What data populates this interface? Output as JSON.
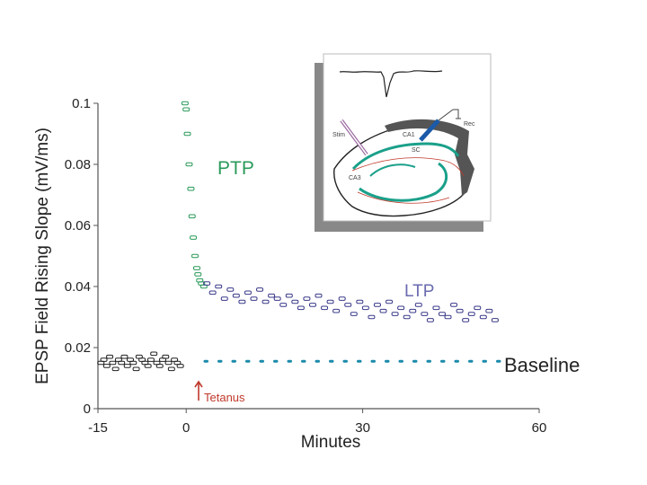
{
  "chart_data": {
    "type": "scatter",
    "xlabel": "Minutes",
    "ylabel": "EPSP Field Rising Slope (mV/ms)",
    "xlim": [
      -15,
      60
    ],
    "ylim": [
      0,
      0.1
    ],
    "x_ticks": [
      "-15",
      "0",
      "30",
      "60"
    ],
    "y_ticks": [
      "0",
      "0.02",
      "0.04",
      "0.06",
      "0.08",
      "0.1"
    ],
    "grid": false,
    "series": [
      {
        "name": "Baseline",
        "color": "#222222",
        "x": [
          -14.5,
          -14,
          -13.5,
          -13,
          -12.5,
          -12,
          -11.5,
          -11,
          -10.5,
          -10,
          -9.5,
          -9,
          -8.5,
          -8,
          -7.5,
          -7,
          -6.5,
          -6,
          -5.5,
          -5,
          -4.5,
          -4,
          -3.5,
          -3,
          -2.5,
          -2,
          -1.5,
          -1
        ],
        "y": [
          0.015,
          0.016,
          0.014,
          0.017,
          0.015,
          0.013,
          0.016,
          0.015,
          0.017,
          0.014,
          0.016,
          0.015,
          0.013,
          0.017,
          0.016,
          0.015,
          0.014,
          0.016,
          0.018,
          0.015,
          0.014,
          0.016,
          0.017,
          0.015,
          0.013,
          0.016,
          0.015,
          0.014
        ]
      },
      {
        "name": "PTP",
        "color": "#2a9a5a",
        "x": [
          -0.2,
          0,
          0.2,
          0.5,
          0.8,
          1,
          1.2,
          1.5,
          1.8,
          2,
          2.3,
          2.6,
          3
        ],
        "y": [
          0.1,
          0.098,
          0.09,
          0.08,
          0.072,
          0.063,
          0.056,
          0.05,
          0.046,
          0.044,
          0.042,
          0.041,
          0.04
        ]
      },
      {
        "name": "LTP",
        "color": "#3a3a8a",
        "x": [
          3.5,
          4.5,
          5.5,
          6.5,
          7.5,
          8.5,
          9.5,
          10.5,
          11.5,
          12.5,
          13.5,
          14.5,
          15.5,
          16.5,
          17.5,
          18.5,
          19.5,
          20.5,
          21.5,
          22.5,
          23.5,
          24.5,
          25.5,
          26.5,
          27.5,
          28.5,
          29.5,
          30.5,
          31.5,
          32.5,
          33.5,
          34.5,
          35.5,
          36.5,
          37.5,
          38.5,
          39.5,
          40.5,
          41.5,
          42.5,
          43.5,
          44.5,
          45.5,
          46.5,
          47.5,
          48.5,
          49.5,
          50.5,
          51.5,
          52.5
        ],
        "y": [
          0.041,
          0.038,
          0.04,
          0.036,
          0.039,
          0.037,
          0.035,
          0.038,
          0.036,
          0.039,
          0.035,
          0.037,
          0.036,
          0.034,
          0.037,
          0.035,
          0.033,
          0.036,
          0.034,
          0.037,
          0.033,
          0.035,
          0.032,
          0.036,
          0.034,
          0.031,
          0.035,
          0.033,
          0.03,
          0.034,
          0.032,
          0.035,
          0.031,
          0.033,
          0.03,
          0.032,
          0.034,
          0.031,
          0.029,
          0.033,
          0.031,
          0.03,
          0.034,
          0.032,
          0.029,
          0.031,
          0.033,
          0.03,
          0.032,
          0.029
        ]
      }
    ],
    "baseline_level": 0.0155,
    "annotations": {
      "ptp": "PTP",
      "ltp": "LTP",
      "baseline": "Baseline",
      "tetanus": "Tetanus"
    },
    "colors": {
      "ptp_label": "#2a9a5a",
      "ltp_label": "#6a6ab0",
      "baseline_line": "#1a8aaa",
      "tetanus": "#c0392b",
      "axis": "#555555"
    },
    "inset_labels": {
      "stim": "Stim",
      "rec": "Rec",
      "ca3": "CA3",
      "ca1": "CA1",
      "sc": "SC"
    }
  }
}
